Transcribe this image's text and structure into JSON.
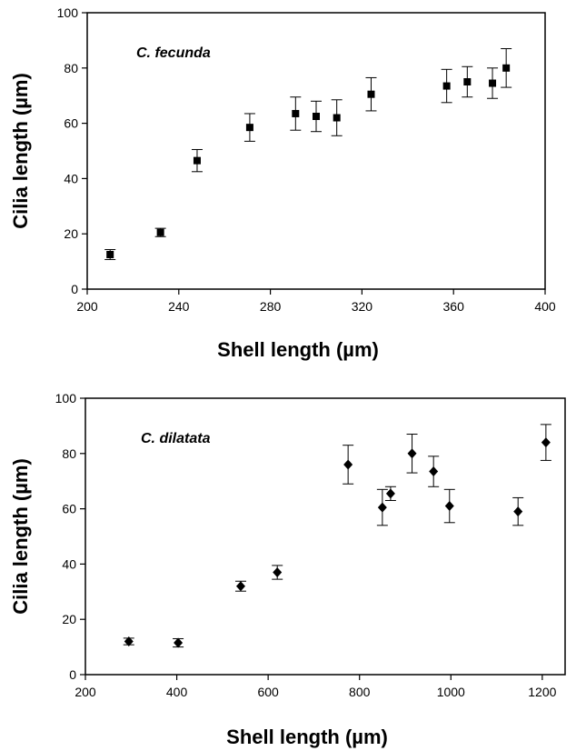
{
  "chart_data": [
    {
      "type": "scatter",
      "annotation": "C. fecunda",
      "xlabel": "Shell length (µm)",
      "ylabel": "Cilia length (µm)",
      "xlim": [
        200,
        400
      ],
      "ylim": [
        0,
        100
      ],
      "xticks": [
        200,
        240,
        280,
        320,
        360,
        400
      ],
      "yticks": [
        0,
        20,
        40,
        60,
        80,
        100
      ],
      "marker": "square",
      "grid": false,
      "points": [
        {
          "x": 210,
          "y": 12.5,
          "err": 1.8
        },
        {
          "x": 232,
          "y": 20.5,
          "err": 1.5
        },
        {
          "x": 248,
          "y": 46.5,
          "err": 4.0
        },
        {
          "x": 271,
          "y": 58.5,
          "err": 5.0
        },
        {
          "x": 291,
          "y": 63.5,
          "err": 6.0
        },
        {
          "x": 300,
          "y": 62.5,
          "err": 5.5
        },
        {
          "x": 309,
          "y": 62.0,
          "err": 6.5
        },
        {
          "x": 324,
          "y": 70.5,
          "err": 6.0
        },
        {
          "x": 357,
          "y": 73.5,
          "err": 6.0
        },
        {
          "x": 366,
          "y": 75.0,
          "err": 5.5
        },
        {
          "x": 377,
          "y": 74.5,
          "err": 5.5
        },
        {
          "x": 383,
          "y": 80.0,
          "err": 7.0
        }
      ]
    },
    {
      "type": "scatter",
      "annotation": "C. dilatata",
      "xlabel": "Shell length (µm)",
      "ylabel": "Cilia length (µm)",
      "xlim": [
        200,
        1250
      ],
      "ylim": [
        0,
        100
      ],
      "xticks": [
        200,
        400,
        600,
        800,
        1000,
        1200
      ],
      "yticks": [
        0,
        20,
        40,
        60,
        80,
        100
      ],
      "marker": "diamond",
      "grid": false,
      "points": [
        {
          "x": 295,
          "y": 12.0,
          "err": 1.2
        },
        {
          "x": 403,
          "y": 11.5,
          "err": 1.5
        },
        {
          "x": 540,
          "y": 32.0,
          "err": 1.8
        },
        {
          "x": 620,
          "y": 37.0,
          "err": 2.5
        },
        {
          "x": 775,
          "y": 76.0,
          "err": 7.0
        },
        {
          "x": 850,
          "y": 60.5,
          "err": 6.5
        },
        {
          "x": 868,
          "y": 65.5,
          "err": 2.5
        },
        {
          "x": 915,
          "y": 80.0,
          "err": 7.0
        },
        {
          "x": 962,
          "y": 73.5,
          "err": 5.5
        },
        {
          "x": 997,
          "y": 61.0,
          "err": 6.0
        },
        {
          "x": 1147,
          "y": 59.0,
          "err": 5.0
        },
        {
          "x": 1208,
          "y": 84.0,
          "err": 6.5
        }
      ]
    }
  ]
}
